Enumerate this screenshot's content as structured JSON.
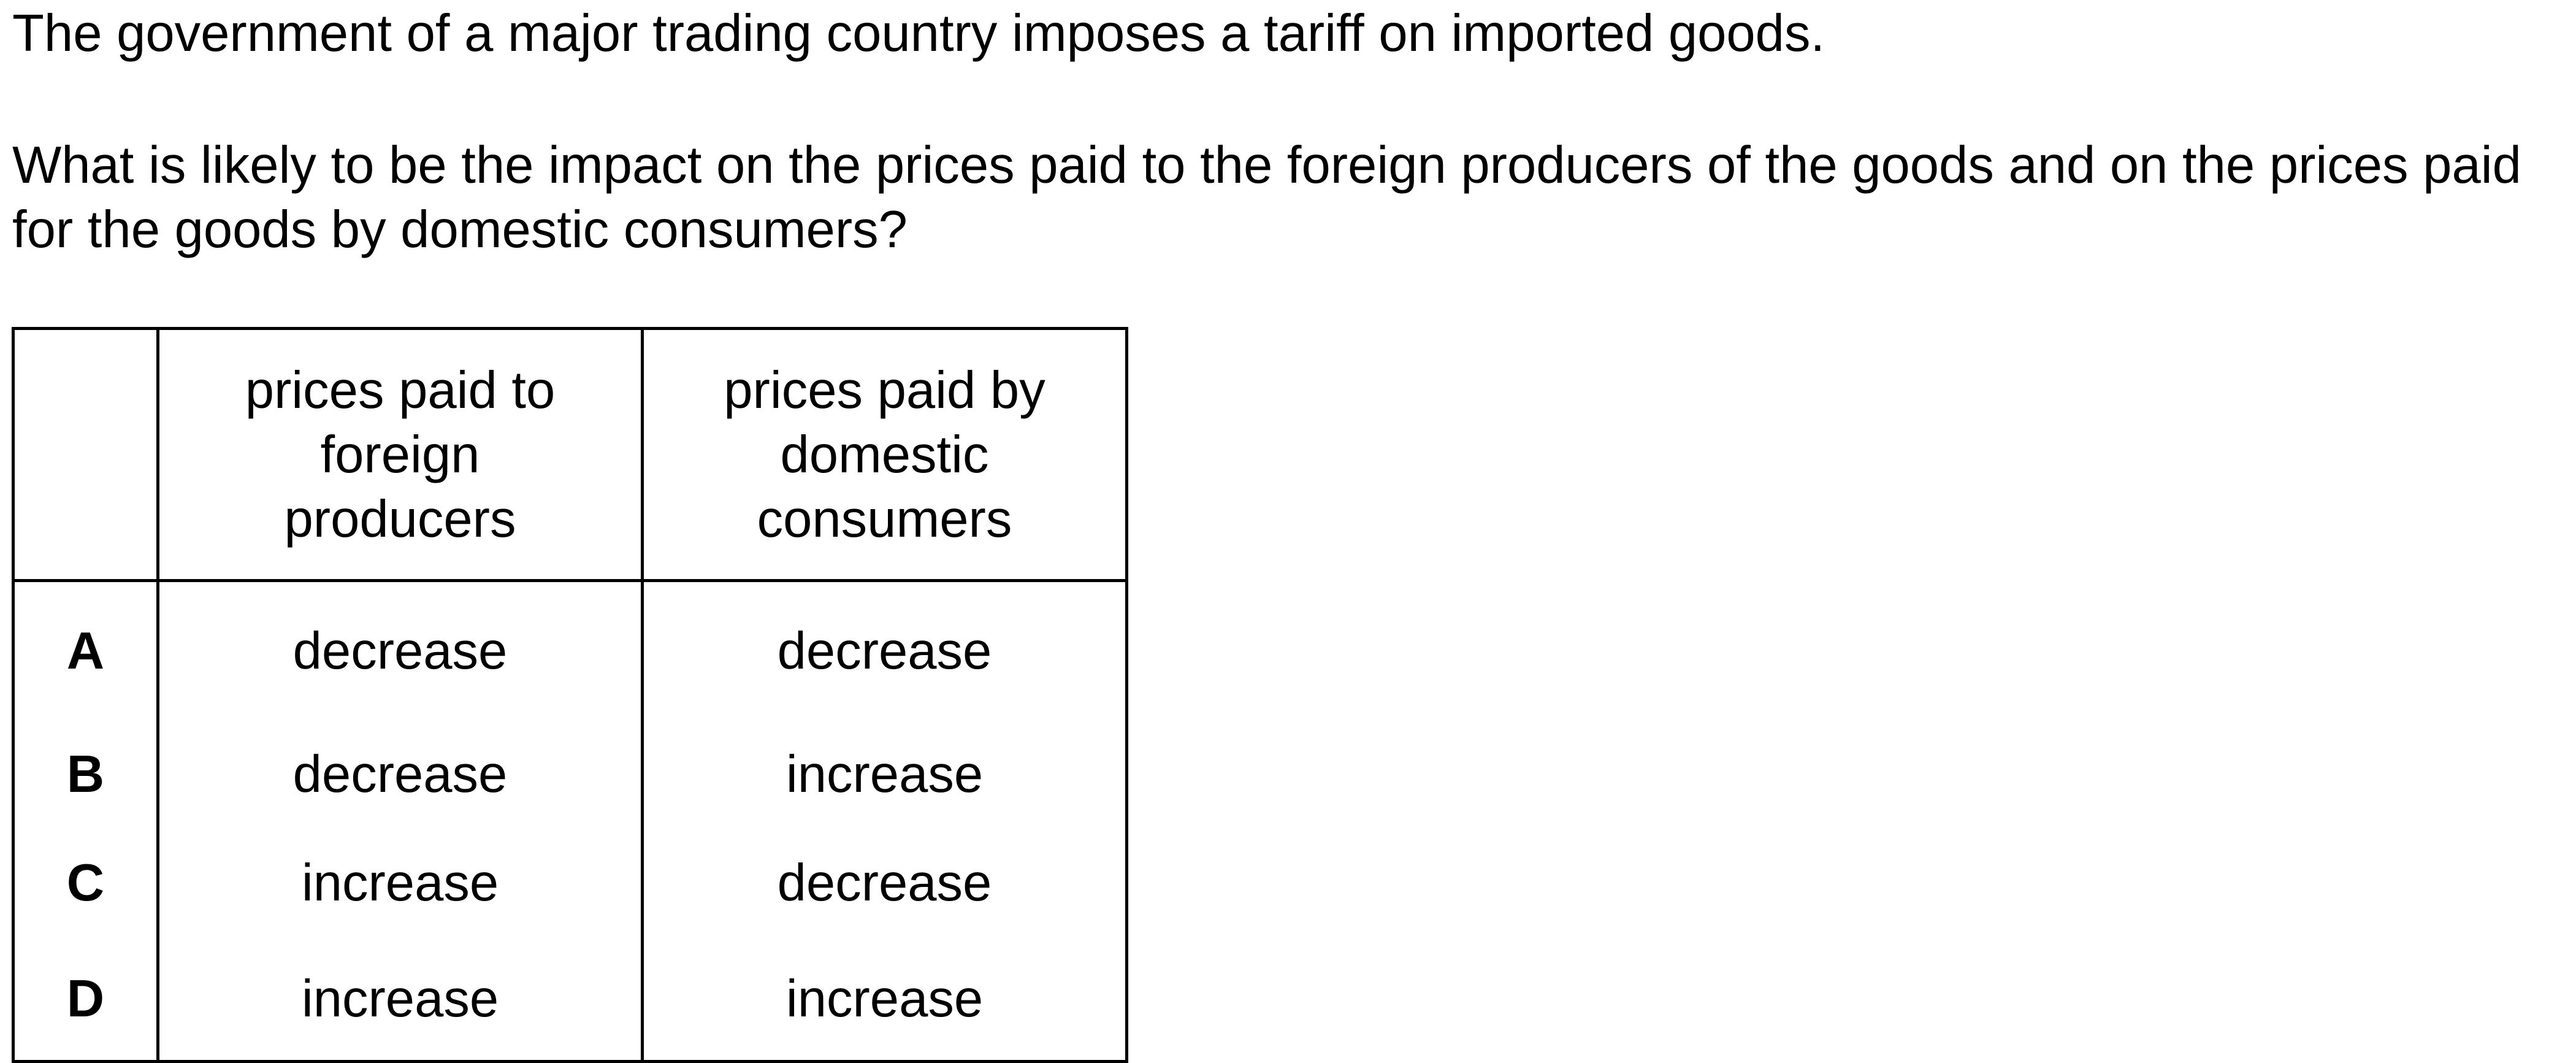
{
  "question": {
    "stem_line1": "The government of a major trading country imposes a tariff on imported goods.",
    "stem_line2": "What is likely to be the impact on the prices paid to the foreign producers of the goods and on the prices paid for the goods by domestic consumers?"
  },
  "table": {
    "headers": {
      "foreign": "prices paid to\nforeign\nproducers",
      "domestic": "prices paid by\ndomestic\nconsumers"
    },
    "options": [
      {
        "letter": "A",
        "foreign": "decrease",
        "domestic": "decrease"
      },
      {
        "letter": "B",
        "foreign": "decrease",
        "domestic": "increase"
      },
      {
        "letter": "C",
        "foreign": "increase",
        "domestic": "decrease"
      },
      {
        "letter": "D",
        "foreign": "increase",
        "domestic": "increase"
      }
    ]
  }
}
